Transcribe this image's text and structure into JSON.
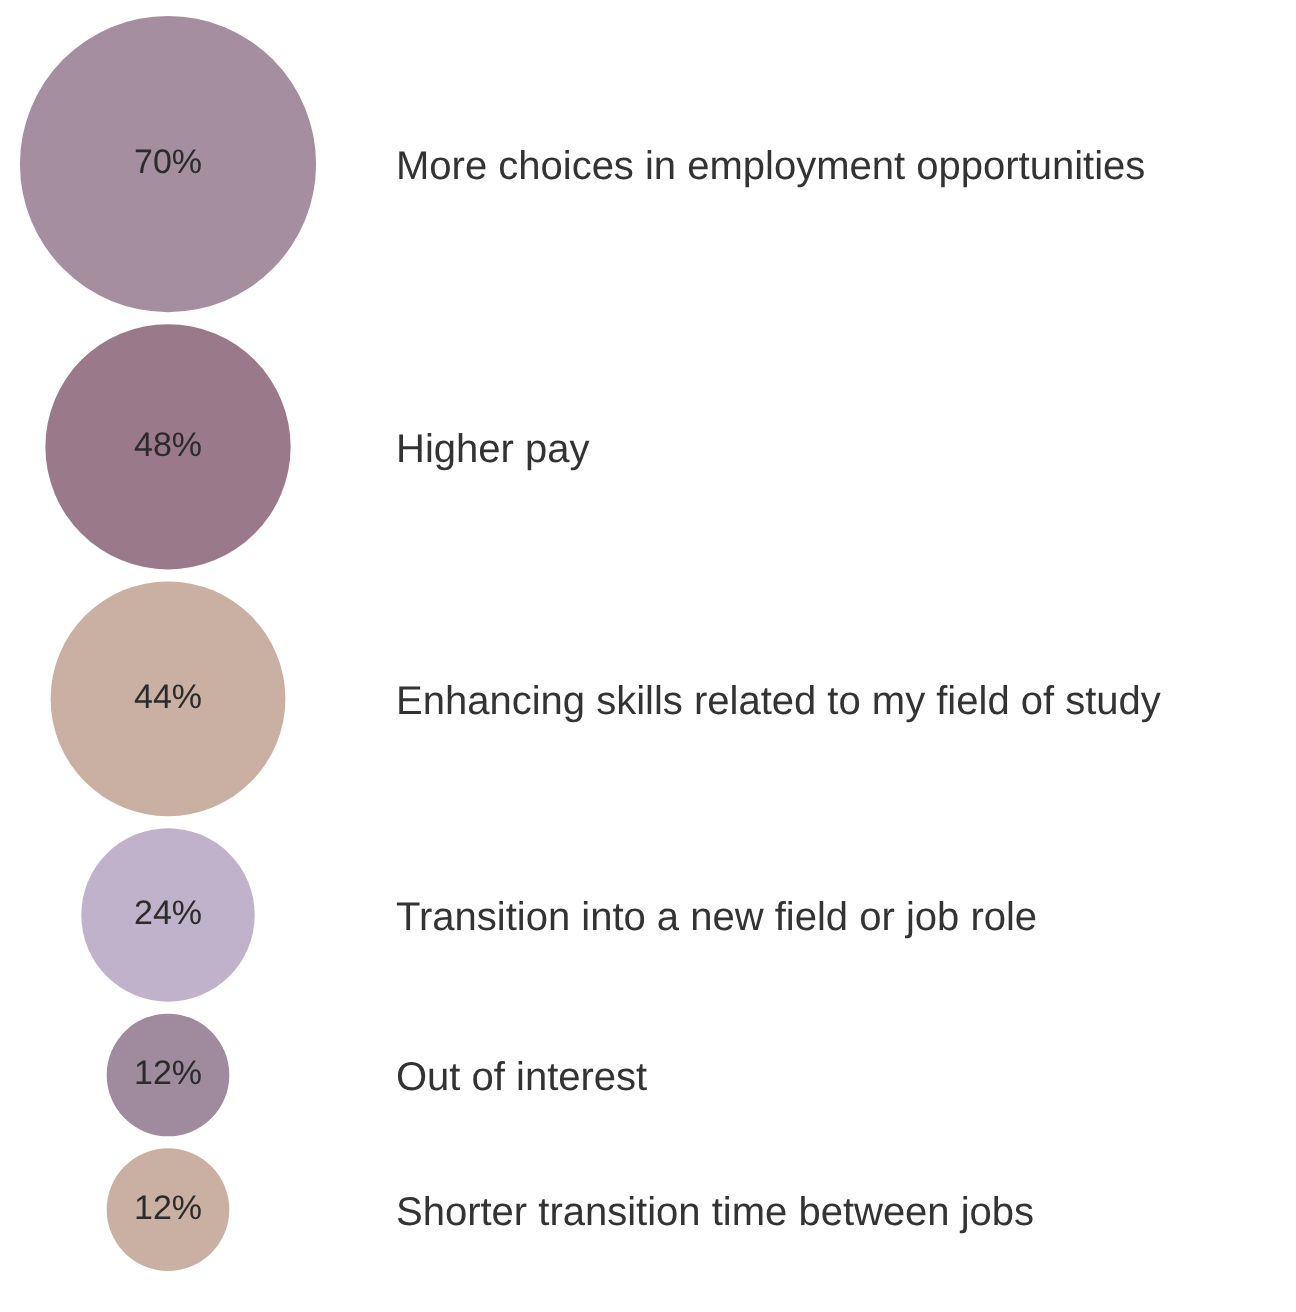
{
  "chart_data": {
    "type": "other",
    "categories": [
      "More choices in employment opportunities",
      "Higher pay",
      "Enhancing skills related to my field of study",
      "Transition into a new field or job role",
      "Out of interest",
      "Shorter transition time between jobs"
    ],
    "values": [
      70,
      48,
      44,
      24,
      12,
      12
    ],
    "value_labels": [
      "70%",
      "48%",
      "44%",
      "24%",
      "12%",
      "12%"
    ],
    "colors": [
      "#a48e9f",
      "#9a7a8a",
      "#c9b0a3",
      "#c0b2cb",
      "#a08a9e",
      "#c9b0a3"
    ]
  }
}
